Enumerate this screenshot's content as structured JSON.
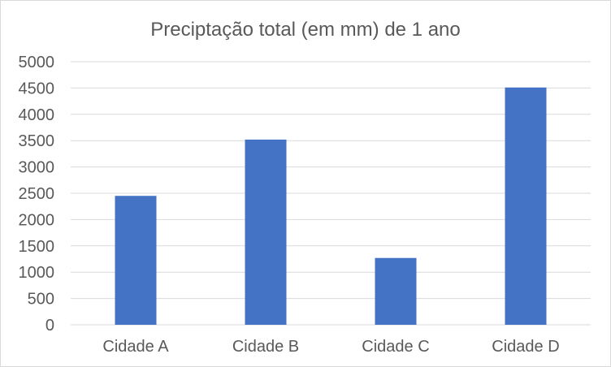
{
  "chart_data": {
    "type": "bar",
    "title": "Preciptação total (em mm) de 1 ano",
    "categories": [
      "Cidade A",
      "Cidade B",
      "Cidade C",
      "Cidade D"
    ],
    "values": [
      2450,
      3520,
      1270,
      4510
    ],
    "ylim": [
      0,
      5000
    ],
    "yticks": [
      "0",
      "500",
      "1000",
      "1500",
      "2000",
      "2500",
      "3000",
      "3500",
      "4000",
      "4500",
      "5000"
    ],
    "grid": true,
    "legend": "none",
    "colors": {
      "bar": "#4472c4",
      "grid": "#d9d9d9",
      "text": "#595959"
    }
  }
}
